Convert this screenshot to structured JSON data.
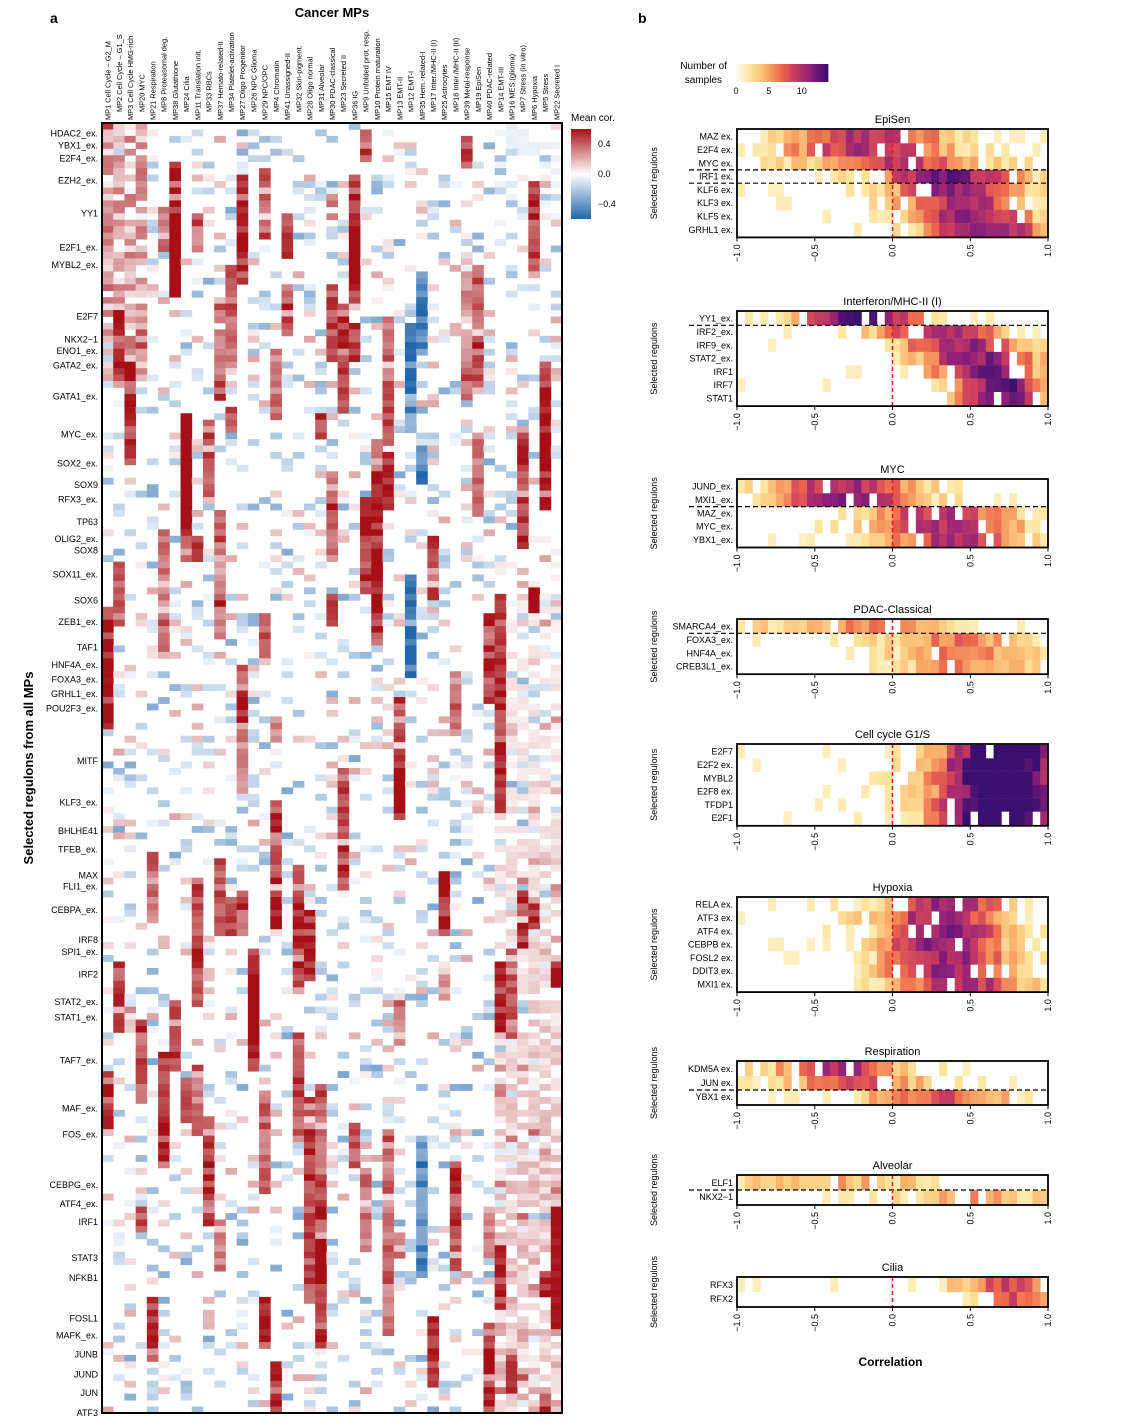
{
  "panel_a_letter": "a",
  "panel_b_letter": "b",
  "chart_data": [
    {
      "type": "heatmap",
      "title": "Cancer MPs",
      "ylabel": "Selected regulons from all MPs",
      "legend_title": "Mean cor.",
      "legend_ticks": [
        "0.4",
        "0.0",
        "−0.4"
      ],
      "legend_tick_values": [
        0.4,
        0.0,
        -0.4
      ],
      "value_range": [
        -0.6,
        0.6
      ],
      "colors": {
        "low": "#2166ac",
        "mid": "#ffffff",
        "high": "#a50f15"
      },
      "columns": [
        "MP1 Cell Cycle – G2_M",
        "MP2  Cell Cycle – G1_S",
        "MP3  Cell Cycle HMG-rich",
        "MP20 MYC",
        "MP21 Respiration",
        "MP8 Proteasomal deg.",
        "MP38 Glutathione",
        "MP24 Cilia",
        "MP11 Translation init.",
        "MP33 RBCs",
        "MP37 Hemato-related-II",
        "MP34 Platelet-activation",
        "MP27 Oligo Progenitor",
        "MP26 NPC Glioma",
        "MP29 NPC/OPC",
        "MP4 Chromatin",
        "MP41 Unassigned-II",
        "MP32 Skin-pigment.",
        "MP28 Oligo normal",
        "MP31 Alveolar",
        "MP30 PDAC-classical",
        "MP23 Secreted II",
        "MP36 IG",
        "MP9 Unfolded prot. resp.",
        "MP10 Protein maturation",
        "MP15 EMT IV",
        "MP13 EMT-II",
        "MP12 EMT-I",
        "MP35 Hem.-related-I",
        "MP17 Inter./MHC-II (I)",
        "MP25 Astrocytes",
        "MP18 Inter./MHC-II (II)",
        "MP39 Metal-response",
        "MP19 EpiSen",
        "MP40 PDAC-related",
        "MP14 EMT-III",
        "MP16 MES (glioma)",
        "MP7 Stress (in vitro)",
        "MP6 Hypoxia",
        "MP5 Stress",
        "MP22 Secreted I"
      ],
      "row_labels": [
        "HDAC2_ex.",
        "YBX1_ex.",
        "E2F4_ex.",
        "EZH2_ex.",
        "YY1",
        "E2F1_ex.",
        "MYBL2_ex.",
        "E2F7",
        "NKX2−1",
        "ENO1_ex.",
        "GATA2_ex.",
        "GATA1_ex.",
        "MYC_ex.",
        "SOX2_ex.",
        "SOX9",
        "RFX3_ex.",
        "TP63",
        "OLIG2_ex.",
        "SOX8",
        "SOX11_ex.",
        "SOX6",
        "ZEB1_ex.",
        "TAF1",
        "HNF4A_ex.",
        "FOXA3_ex.",
        "GRHL1_ex.",
        "POU2F3_ex.",
        "MITF",
        "KLF3_ex.",
        "BHLHE41",
        "TFEB_ex.",
        "MAX",
        "FLI1_ex.",
        "CEBPA_ex.",
        "IRF8",
        "SPI1_ex.",
        "IRF2",
        "STAT2_ex.",
        "STAT1_ex.",
        "TAF7_ex.",
        "MAF_ex.",
        "FOS_ex.",
        "CEBPG_ex.",
        "ATF4_ex.",
        "IRF1",
        "STAT3",
        "NFKB1",
        "FOSL1",
        "MAFK_ex.",
        "JUNB",
        "JUND",
        "JUN",
        "ATF3"
      ],
      "row_label_positions": [
        0.012,
        0.026,
        0.041,
        0.067,
        0.105,
        0.145,
        0.165,
        0.225,
        0.252,
        0.265,
        0.282,
        0.318,
        0.362,
        0.396,
        0.421,
        0.438,
        0.464,
        0.484,
        0.497,
        0.525,
        0.555,
        0.58,
        0.61,
        0.63,
        0.647,
        0.664,
        0.681,
        0.742,
        0.79,
        0.823,
        0.845,
        0.875,
        0.888,
        0.915,
        0.95,
        0.964,
        0.99,
        1.022,
        1.04,
        1.09,
        1.146,
        1.176,
        1.235,
        1.257,
        1.278,
        1.32,
        1.343,
        1.39,
        1.41,
        1.432,
        1.455,
        1.477,
        1.5
      ],
      "n_rows": 200
    },
    {
      "type": "heatmap",
      "subtype": "binned-histogram",
      "legend_title_lines": [
        "Number of",
        "samples"
      ],
      "legend_ticks": [
        "0",
        "5",
        "10"
      ],
      "legend_tick_values": [
        0,
        5,
        10
      ],
      "count_max": 14,
      "x_axis_label": "Correlation",
      "x_tick_labels": [
        "−1.0",
        "−0.5",
        "0.0",
        "0.5",
        "1.0"
      ],
      "x_tick_values": [
        -1.0,
        -0.5,
        0.0,
        0.5,
        1.0
      ],
      "xlim": [
        -1.0,
        1.0
      ],
      "bins": 40,
      "ylabel": "Selected regulons",
      "panels": [
        {
          "title": "EpiSen",
          "regulons": [
            "MAZ ex.",
            "E2F4 ex.",
            "MYC ex.",
            "IRF1 ex.",
            "KLF6 ex.",
            "KLF3 ex.",
            "KLF5 ex.",
            "GRHL1 ex."
          ],
          "dashed_after_rows": [
            3,
            4
          ],
          "profiles": [
            [
              -0.15,
              0.4,
              0.7
            ],
            [
              -0.15,
              0.4,
              0.75
            ],
            [
              0.05,
              0.45,
              0.65
            ],
            [
              0.35,
              0.35,
              0.85
            ],
            [
              0.4,
              0.3,
              0.85
            ],
            [
              0.45,
              0.3,
              0.75
            ],
            [
              0.5,
              0.3,
              0.8
            ],
            [
              0.6,
              0.3,
              0.85
            ]
          ]
        },
        {
          "title": "Interferon/MHC-II (I)",
          "regulons": [
            "YY1_ex.",
            "IRF2_ex.",
            "IRF9_ex.",
            "STAT2_ex.",
            "IRF1",
            "IRF7",
            "STAT1"
          ],
          "dashed_after_rows": [
            1
          ],
          "profiles": [
            [
              -0.2,
              0.3,
              0.95
            ],
            [
              0.3,
              0.3,
              0.8
            ],
            [
              0.45,
              0.3,
              0.8
            ],
            [
              0.55,
              0.28,
              0.85
            ],
            [
              0.6,
              0.25,
              0.85
            ],
            [
              0.7,
              0.22,
              0.95
            ],
            [
              0.7,
              0.22,
              0.95
            ]
          ]
        },
        {
          "title": "MYC",
          "regulons": [
            "JUND_ex.",
            "MXI1_ex.",
            "MAZ_ex.",
            "MYC_ex.",
            "YBX1_ex."
          ],
          "dashed_after_rows": [
            2
          ],
          "profiles": [
            [
              -0.3,
              0.35,
              0.75
            ],
            [
              -0.3,
              0.35,
              0.8
            ],
            [
              0.3,
              0.35,
              0.7
            ],
            [
              0.35,
              0.35,
              0.7
            ],
            [
              0.4,
              0.35,
              0.7
            ]
          ]
        },
        {
          "title": "PDAC-Classical",
          "regulons": [
            "SMARCA4_ex.",
            "FOXA3_ex.",
            "HNF4A_ex.",
            "CREB3L1_ex."
          ],
          "dashed_after_rows": [
            1
          ],
          "profiles": [
            [
              -0.2,
              0.5,
              0.4
            ],
            [
              0.4,
              0.35,
              0.45
            ],
            [
              0.45,
              0.35,
              0.45
            ],
            [
              0.45,
              0.35,
              0.4
            ]
          ]
        },
        {
          "title": "Cell cycle G1/S",
          "regulons": [
            "E2F7",
            "E2F2 ex.",
            "MYBL2",
            "E2F8 ex.",
            "TFDP1",
            "E2F1"
          ],
          "dashed_after_rows": [],
          "profiles": [
            [
              0.75,
              0.28,
              1.3
            ],
            [
              0.7,
              0.3,
              1.25
            ],
            [
              0.7,
              0.3,
              1.2
            ],
            [
              0.72,
              0.3,
              1.25
            ],
            [
              0.7,
              0.3,
              1.25
            ],
            [
              0.7,
              0.3,
              1.25
            ]
          ]
        },
        {
          "title": "Hypoxia",
          "regulons": [
            "RELA ex.",
            "ATF3 ex.",
            "ATF4 ex.",
            "CEBPB ex.",
            "FOSL2 ex.",
            "DDIT3 ex.",
            "MXI1 ex."
          ],
          "dashed_after_rows": [],
          "profiles": [
            [
              0.35,
              0.3,
              0.8
            ],
            [
              0.3,
              0.3,
              0.8
            ],
            [
              0.35,
              0.3,
              0.8
            ],
            [
              0.3,
              0.3,
              0.8
            ],
            [
              0.35,
              0.3,
              0.8
            ],
            [
              0.35,
              0.3,
              0.8
            ],
            [
              0.45,
              0.3,
              0.75
            ]
          ]
        },
        {
          "title": "Respiration",
          "regulons": [
            "KDM5A ex.",
            "JUN ex.",
            "YBX1 ex."
          ],
          "dashed_after_rows": [
            2
          ],
          "profiles": [
            [
              -0.35,
              0.3,
              0.75
            ],
            [
              -0.25,
              0.35,
              0.55
            ],
            [
              0.3,
              0.35,
              0.6
            ]
          ]
        },
        {
          "title": "Alveolar",
          "regulons": [
            "ELF1",
            "NKX2−1"
          ],
          "dashed_after_rows": [
            1
          ],
          "profiles": [
            [
              -0.4,
              0.5,
              0.35
            ],
            [
              0.5,
              0.35,
              0.35
            ]
          ]
        },
        {
          "title": "Cilia",
          "regulons": [
            "RFX3",
            "RFX2"
          ],
          "dashed_after_rows": [],
          "profiles": [
            [
              0.75,
              0.25,
              0.6
            ],
            [
              0.8,
              0.2,
              0.55
            ]
          ]
        }
      ]
    }
  ]
}
